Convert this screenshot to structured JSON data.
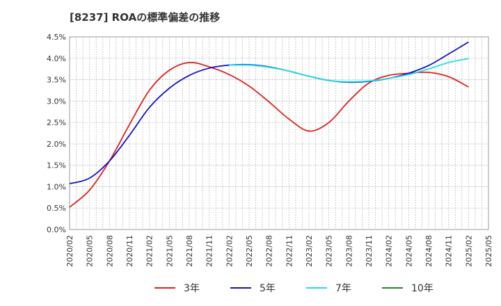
{
  "chart_data": {
    "type": "line",
    "title": "[8237]  ROAの標準偏差の推移",
    "xlabel": "",
    "ylabel": "",
    "ylim": [
      0.0,
      4.5
    ],
    "y_ticks": [
      "0.0%",
      "0.5%",
      "1.0%",
      "1.5%",
      "2.0%",
      "2.5%",
      "3.0%",
      "3.5%",
      "4.0%",
      "4.5%"
    ],
    "x_ticks": [
      "2020/02",
      "2020/05",
      "2020/08",
      "2020/11",
      "2021/02",
      "2021/05",
      "2021/08",
      "2021/11",
      "2022/02",
      "2022/05",
      "2022/08",
      "2022/11",
      "2023/02",
      "2023/05",
      "2023/08",
      "2023/11",
      "2024/02",
      "2024/05",
      "2024/08",
      "2024/11",
      "2025/02",
      "2025/05"
    ],
    "grid": true,
    "legend_position": "bottom",
    "series": [
      {
        "name": "3年",
        "color": "#e0201b",
        "points": [
          [
            "2020/02",
            0.52
          ],
          [
            "2020/05",
            0.92
          ],
          [
            "2020/08",
            1.6
          ],
          [
            "2020/11",
            2.45
          ],
          [
            "2021/02",
            3.25
          ],
          [
            "2021/05",
            3.72
          ],
          [
            "2021/08",
            3.9
          ],
          [
            "2021/11",
            3.8
          ],
          [
            "2022/02",
            3.62
          ],
          [
            "2022/05",
            3.35
          ],
          [
            "2022/08",
            2.98
          ],
          [
            "2022/11",
            2.58
          ],
          [
            "2023/02",
            2.3
          ],
          [
            "2023/05",
            2.5
          ],
          [
            "2023/08",
            3.0
          ],
          [
            "2023/11",
            3.42
          ],
          [
            "2024/02",
            3.6
          ],
          [
            "2024/05",
            3.65
          ],
          [
            "2024/08",
            3.67
          ],
          [
            "2024/11",
            3.57
          ],
          [
            "2025/02",
            3.33
          ]
        ]
      },
      {
        "name": "5年",
        "color": "#1010cc",
        "points": [
          [
            "2020/02",
            1.07
          ],
          [
            "2020/05",
            1.2
          ],
          [
            "2020/08",
            1.6
          ],
          [
            "2020/11",
            2.2
          ],
          [
            "2021/02",
            2.85
          ],
          [
            "2021/05",
            3.3
          ],
          [
            "2021/08",
            3.6
          ],
          [
            "2021/11",
            3.77
          ],
          [
            "2022/02",
            3.84
          ],
          [
            "2022/05",
            3.85
          ],
          [
            "2022/08",
            3.8
          ],
          [
            "2022/11",
            3.7
          ],
          [
            "2023/02",
            3.58
          ],
          [
            "2023/05",
            3.48
          ],
          [
            "2023/08",
            3.44
          ],
          [
            "2023/11",
            3.46
          ],
          [
            "2024/02",
            3.53
          ],
          [
            "2024/05",
            3.65
          ],
          [
            "2024/08",
            3.83
          ],
          [
            "2024/11",
            4.1
          ],
          [
            "2025/02",
            4.38
          ]
        ]
      },
      {
        "name": "7年",
        "color": "#22dddd",
        "points": [
          [
            "2022/02",
            3.84
          ],
          [
            "2022/05",
            3.84
          ],
          [
            "2022/08",
            3.79
          ],
          [
            "2022/11",
            3.7
          ],
          [
            "2023/02",
            3.58
          ],
          [
            "2023/05",
            3.48
          ],
          [
            "2023/08",
            3.45
          ],
          [
            "2023/11",
            3.47
          ],
          [
            "2024/02",
            3.53
          ],
          [
            "2024/05",
            3.62
          ],
          [
            "2024/08",
            3.75
          ],
          [
            "2024/11",
            3.9
          ],
          [
            "2025/02",
            3.99
          ]
        ]
      },
      {
        "name": "10年",
        "color": "#228822",
        "points": []
      }
    ]
  }
}
